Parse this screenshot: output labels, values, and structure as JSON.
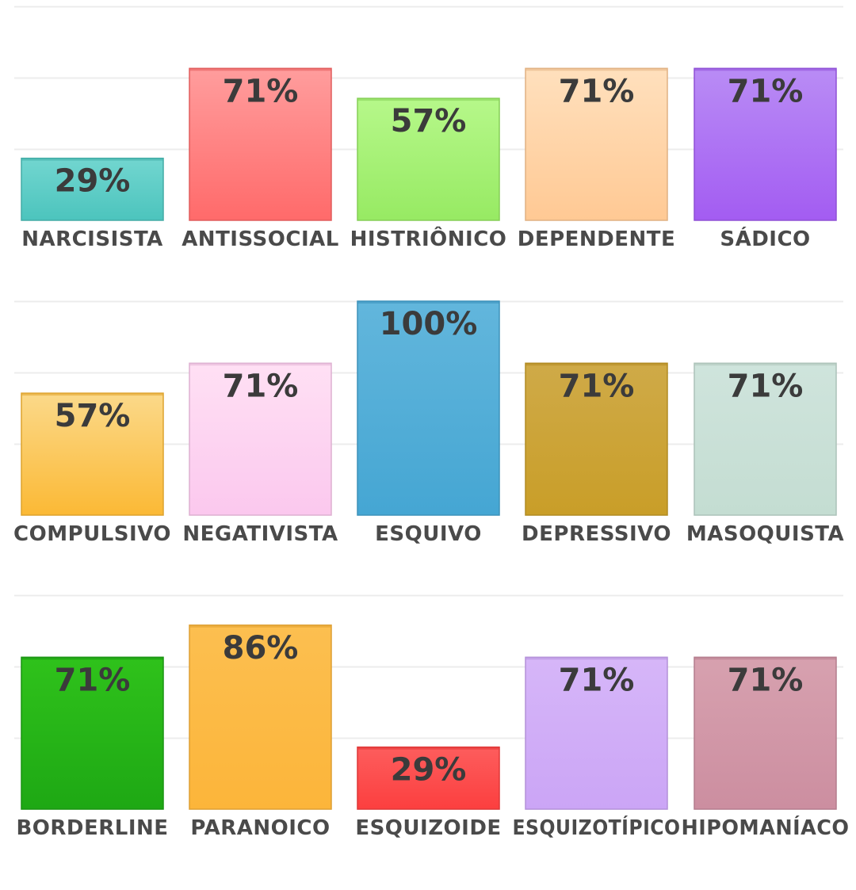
{
  "chart_data": [
    {
      "type": "bar",
      "categories": [
        "NARCISISTA",
        "ANTISSOCIAL",
        "HISTRIÔNICO",
        "DEPENDENTE",
        "SÁDICO"
      ],
      "values": [
        29,
        71,
        57,
        71,
        71
      ],
      "value_labels": [
        "29%",
        "71%",
        "57%",
        "71%",
        "71%"
      ],
      "colors": [
        [
          "#72d6d0",
          "#4cc4bd"
        ],
        [
          "#ff9d9d",
          "#ff6a6a"
        ],
        [
          "#b6f88a",
          "#97ea63"
        ],
        [
          "#ffe0bd",
          "#ffc994"
        ],
        [
          "#b98cf5",
          "#a35cf2"
        ]
      ],
      "ylim": [
        0,
        100
      ],
      "grid": true
    },
    {
      "type": "bar",
      "categories": [
        "COMPULSIVO",
        "NEGATIVISTA",
        "ESQUIVO",
        "DEPRESSIVO",
        "MASOQUISTA"
      ],
      "values": [
        57,
        71,
        100,
        71,
        71
      ],
      "value_labels": [
        "57%",
        "71%",
        "100%",
        "71%",
        "71%"
      ],
      "colors": [
        [
          "#fbd98a",
          "#fbb935"
        ],
        [
          "#ffe0f4",
          "#fbc8ee"
        ],
        [
          "#62b6dc",
          "#45a6d3"
        ],
        [
          "#cfaa48",
          "#c99e28"
        ],
        [
          "#cfe4dc",
          "#c4ddd2"
        ]
      ],
      "ylim": [
        0,
        100
      ],
      "grid": true
    },
    {
      "type": "bar",
      "categories": [
        "BORDERLINE",
        "PARANOICO",
        "ESQUIZOIDE",
        "ESQUIZOTÍPICO",
        "HIPOMANÍACO"
      ],
      "values": [
        71,
        86,
        29,
        71,
        71
      ],
      "value_labels": [
        "71%",
        "86%",
        "29%",
        "71%",
        "71%"
      ],
      "colors": [
        [
          "#2fc21b",
          "#1ea814"
        ],
        [
          "#fcbf50",
          "#fcb53a"
        ],
        [
          "#fd5d5d",
          "#fc3f3f"
        ],
        [
          "#d6b6f8",
          "#cba5f6"
        ],
        [
          "#d7a1af",
          "#cc8ea0"
        ]
      ],
      "ylim": [
        0,
        100
      ],
      "grid": true
    }
  ]
}
